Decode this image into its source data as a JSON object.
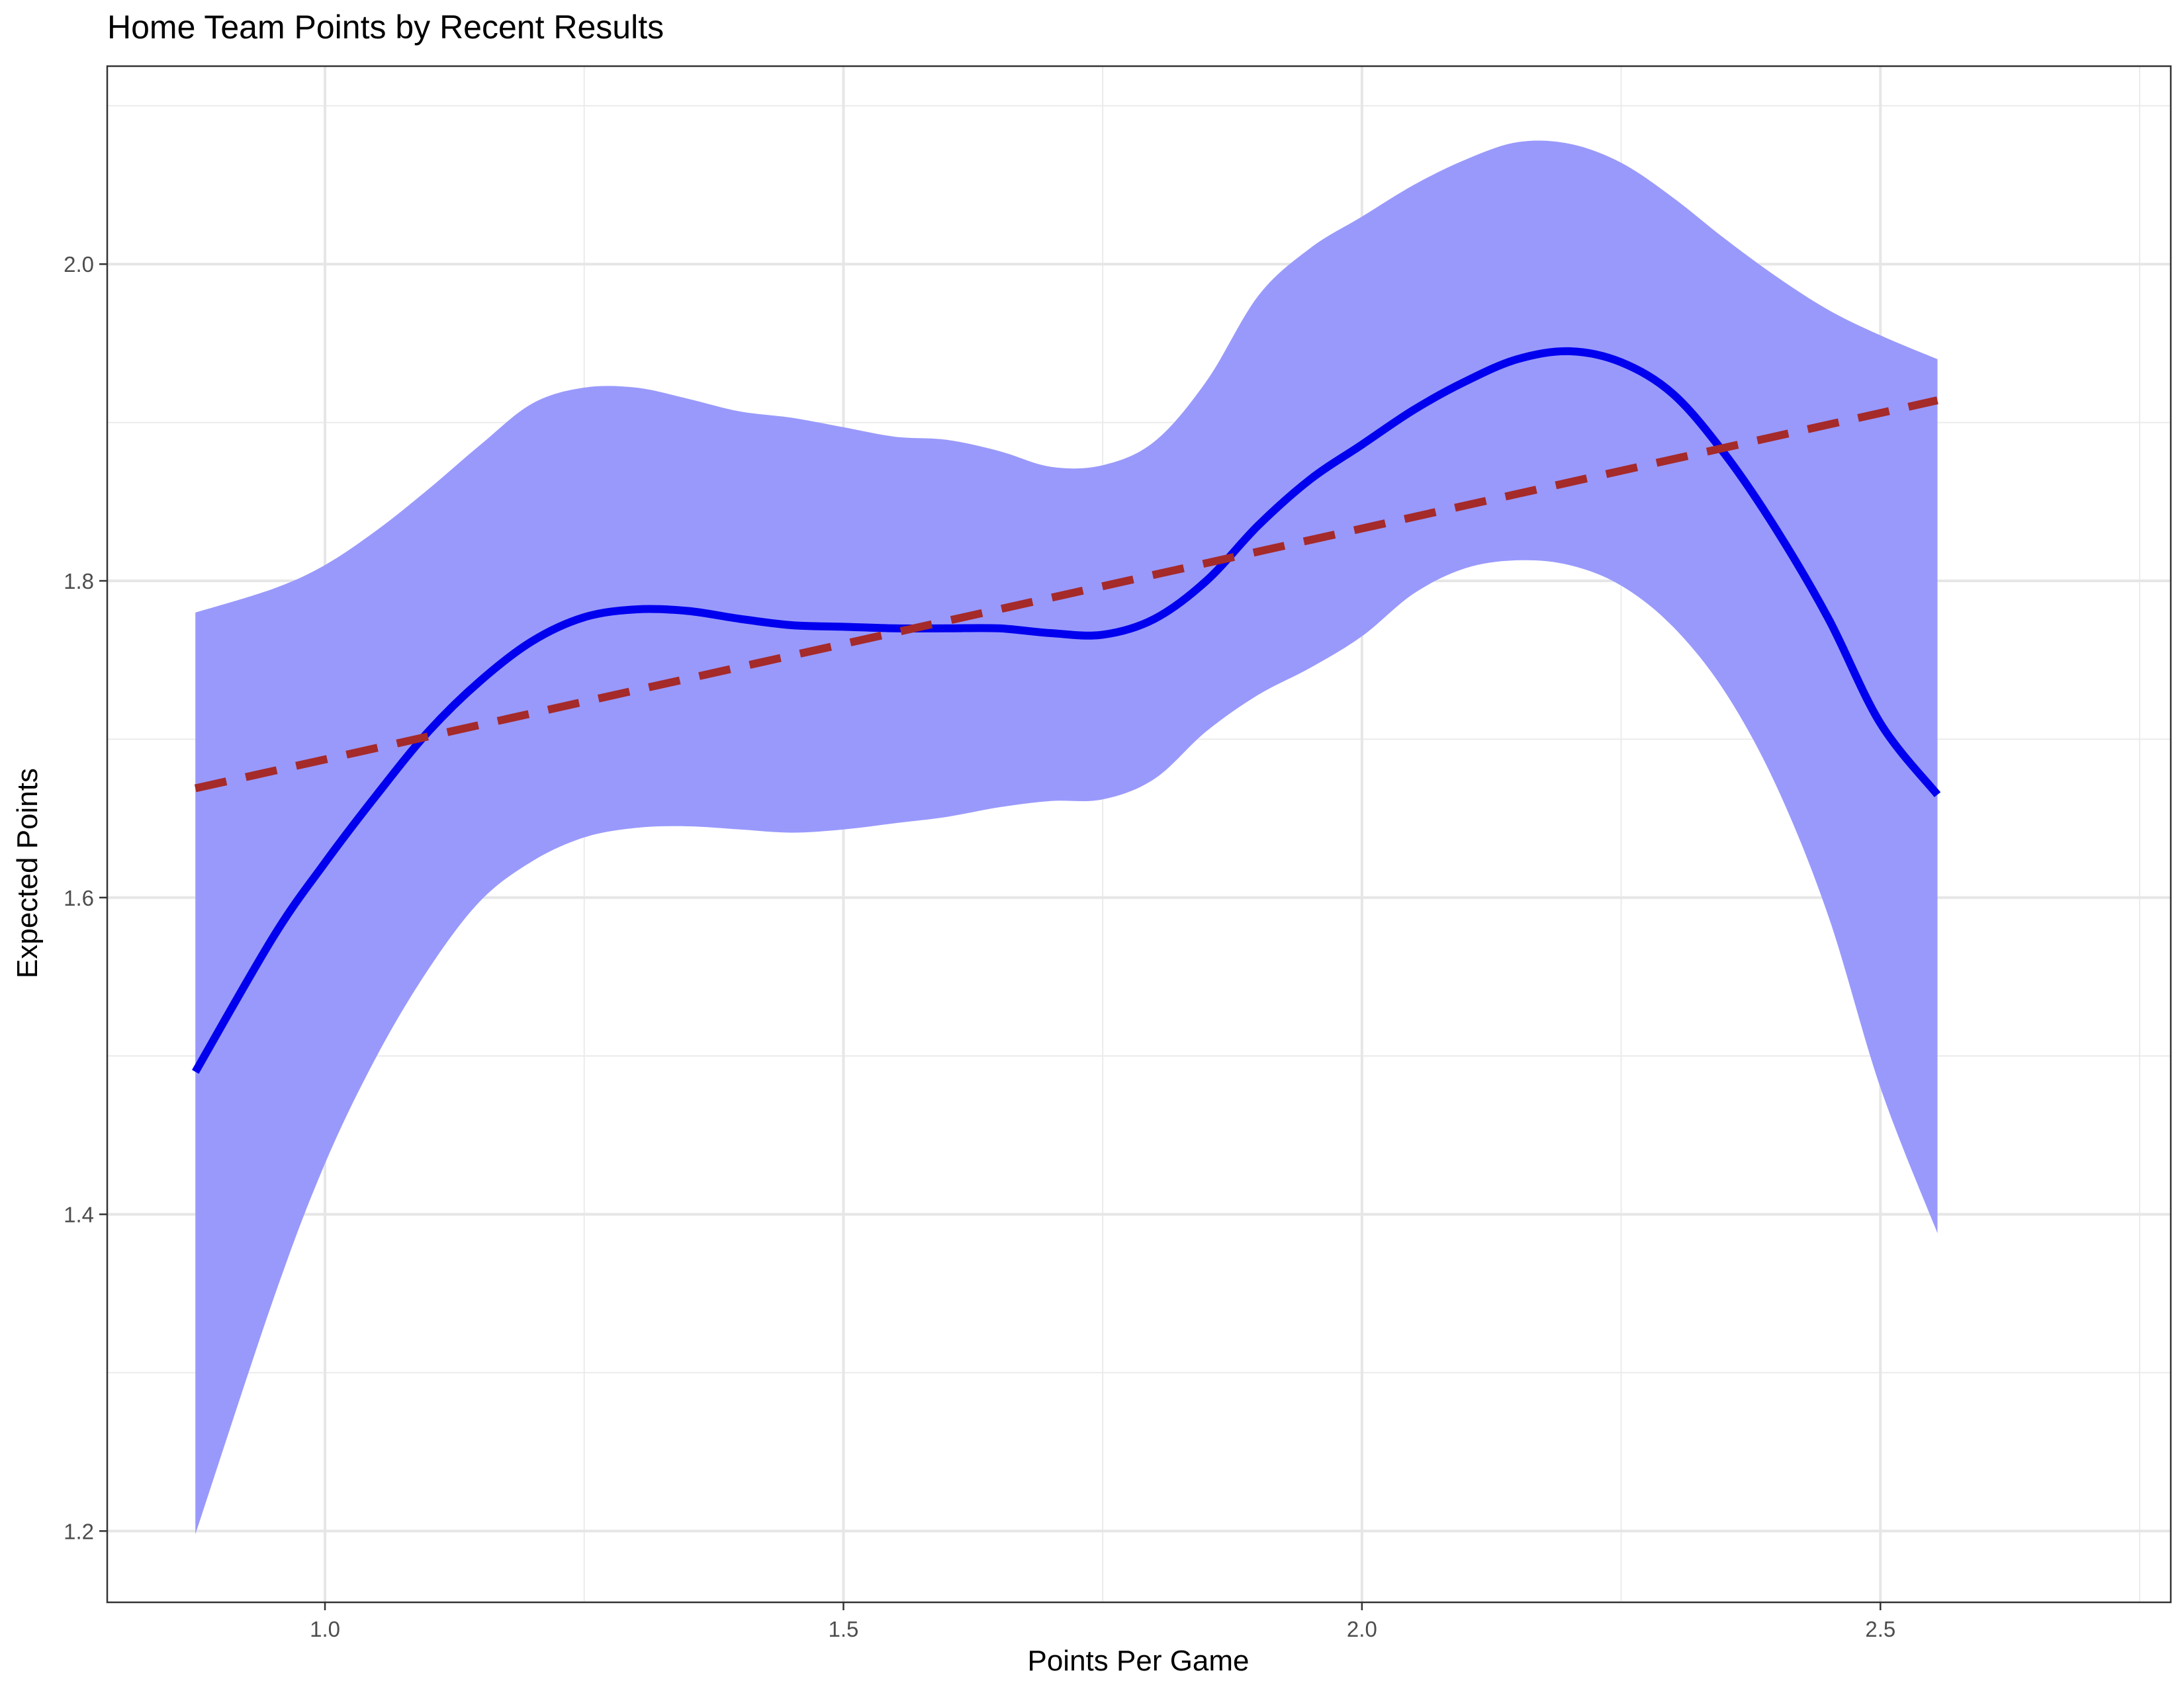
{
  "chart_data": {
    "type": "line",
    "title": "Home Team Points by Recent Results",
    "xlabel": "Points Per Game",
    "ylabel": "Expected Points",
    "xlim": [
      0.79,
      2.78
    ],
    "ylim": [
      1.155,
      2.125
    ],
    "x_ticks": [
      1.0,
      1.5,
      2.0,
      2.5
    ],
    "x_tick_labels": [
      "1.0",
      "1.5",
      "2.0",
      "2.5"
    ],
    "y_ticks": [
      1.2,
      1.4,
      1.6,
      1.8,
      2.0
    ],
    "y_tick_labels": [
      "1.2",
      "1.4",
      "1.6",
      "1.8",
      "2.0"
    ],
    "grid": true,
    "legend": "none",
    "series": [
      {
        "style": "smooth-fit-with-confidence-band",
        "color": "#0000ee",
        "band_color": "#9999fc",
        "x": [
          0.875,
          0.95,
          1.0,
          1.05,
          1.1,
          1.15,
          1.2,
          1.25,
          1.3,
          1.35,
          1.4,
          1.45,
          1.5,
          1.55,
          1.6,
          1.65,
          1.7,
          1.75,
          1.8,
          1.85,
          1.9,
          1.95,
          2.0,
          2.05,
          2.1,
          2.15,
          2.2,
          2.25,
          2.3,
          2.35,
          2.4,
          2.45,
          2.5,
          2.555
        ],
        "y": [
          1.49,
          1.575,
          1.622,
          1.665,
          1.705,
          1.737,
          1.762,
          1.777,
          1.782,
          1.781,
          1.776,
          1.772,
          1.771,
          1.77,
          1.77,
          1.77,
          1.767,
          1.766,
          1.776,
          1.8,
          1.835,
          1.864,
          1.886,
          1.908,
          1.926,
          1.94,
          1.945,
          1.938,
          1.918,
          1.88,
          1.832,
          1.776,
          1.71,
          1.665
        ],
        "upper": [
          1.78,
          1.795,
          1.81,
          1.832,
          1.858,
          1.886,
          1.912,
          1.922,
          1.922,
          1.915,
          1.907,
          1.903,
          1.897,
          1.891,
          1.889,
          1.882,
          1.872,
          1.873,
          1.888,
          1.926,
          1.98,
          2.01,
          2.03,
          2.05,
          2.066,
          2.077,
          2.076,
          2.064,
          2.042,
          2.016,
          1.992,
          1.971,
          1.955,
          1.94
        ],
        "lower": [
          1.198,
          1.346,
          1.432,
          1.5,
          1.555,
          1.598,
          1.623,
          1.638,
          1.644,
          1.645,
          1.643,
          1.641,
          1.643,
          1.647,
          1.651,
          1.657,
          1.661,
          1.662,
          1.675,
          1.705,
          1.728,
          1.745,
          1.765,
          1.792,
          1.808,
          1.813,
          1.81,
          1.797,
          1.771,
          1.73,
          1.67,
          1.588,
          1.48,
          1.388
        ]
      },
      {
        "style": "linear-fit-dashed",
        "color": "#a52a2a",
        "x": [
          0.875,
          2.555
        ],
        "y": [
          1.669,
          1.914
        ]
      }
    ]
  }
}
